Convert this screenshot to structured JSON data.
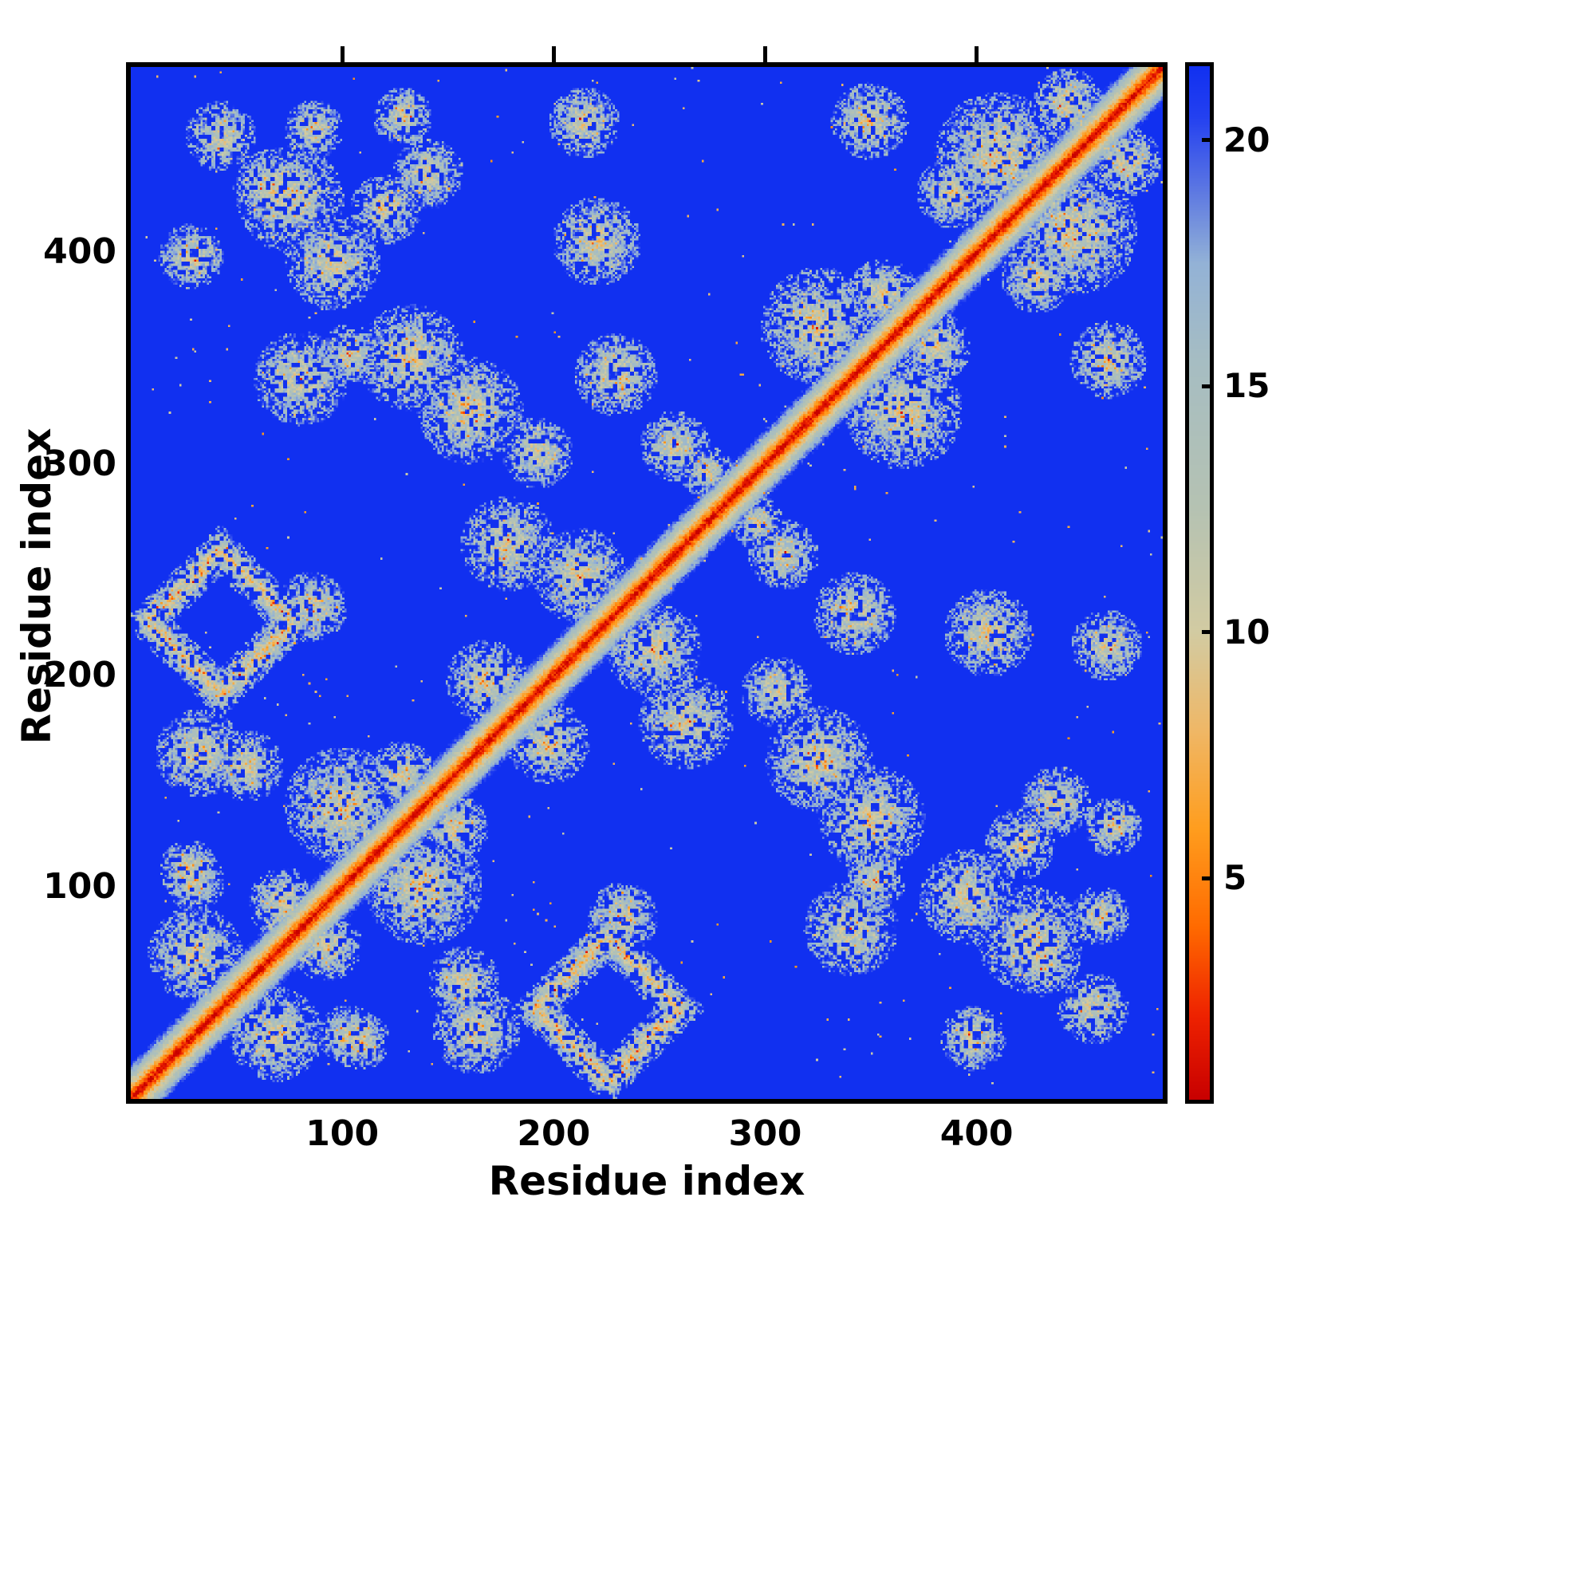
{
  "figure": {
    "description": "Protein residue pairwise distance / contact map with colorbar"
  },
  "chart_data": {
    "type": "heatmap",
    "title": "",
    "xlabel": "Residue index",
    "ylabel": "Residue index",
    "n_residues": 488,
    "x_ticks": [
      100,
      200,
      300,
      400
    ],
    "y_ticks": [
      100,
      200,
      300,
      400
    ],
    "colorbar_ticks": [
      5,
      10,
      15,
      20
    ],
    "value_range": [
      0.5,
      21.5
    ],
    "grid": false,
    "legend_position": "right-colorbar",
    "symmetric": true,
    "background_value": 21.5,
    "background_color": "#1130f0",
    "colormap_stops": [
      [
        0.5,
        "#c80000"
      ],
      [
        2.2,
        "#ee2200"
      ],
      [
        4.0,
        "#ff6a00"
      ],
      [
        6.0,
        "#ff9d1e"
      ],
      [
        8.0,
        "#efb766"
      ],
      [
        10.0,
        "#d2cba2"
      ],
      [
        12.5,
        "#b5c2b2"
      ],
      [
        15.5,
        "#a6bdc2"
      ],
      [
        17.5,
        "#93b2d6"
      ],
      [
        19.0,
        "#5c77e2"
      ],
      [
        20.5,
        "#2340f0"
      ],
      [
        21.5,
        "#1130f0"
      ]
    ],
    "diagonal_band": {
      "value_at_diagonal": 0.6,
      "slope_per_residue": 1.25,
      "half_width": 16
    },
    "contact_clusters": [
      {
        "i": 225,
        "j": 42,
        "r": 34,
        "w": 9,
        "shape": "ring"
      },
      {
        "i": 138,
        "j": 100,
        "r": 20,
        "shape": "blob"
      },
      {
        "i": 365,
        "j": 325,
        "r": 20,
        "shape": "blob"
      },
      {
        "i": 445,
        "j": 410,
        "r": 22,
        "shape": "blob"
      },
      {
        "i": 68,
        "j": 30,
        "r": 16,
        "shape": "blob"
      },
      {
        "i": 325,
        "j": 160,
        "r": 18,
        "shape": "blob"
      },
      {
        "i": 350,
        "j": 132,
        "r": 18,
        "shape": "blob"
      },
      {
        "i": 395,
        "j": 95,
        "r": 16,
        "shape": "blob"
      },
      {
        "i": 425,
        "j": 75,
        "r": 18,
        "shape": "blob"
      },
      {
        "i": 455,
        "j": 42,
        "r": 12,
        "shape": "blob"
      },
      {
        "i": 163,
        "j": 32,
        "r": 15,
        "shape": "blob"
      },
      {
        "i": 108,
        "j": 27,
        "r": 10,
        "shape": "blob"
      },
      {
        "i": 197,
        "j": 168,
        "r": 14,
        "shape": "blob"
      },
      {
        "i": 262,
        "j": 178,
        "r": 16,
        "shape": "blob"
      },
      {
        "i": 308,
        "j": 257,
        "r": 12,
        "shape": "blob"
      },
      {
        "i": 342,
        "j": 229,
        "r": 14,
        "shape": "blob"
      },
      {
        "i": 405,
        "j": 220,
        "r": 15,
        "shape": "blob"
      },
      {
        "i": 462,
        "j": 349,
        "r": 13,
        "shape": "blob"
      },
      {
        "i": 152,
        "j": 128,
        "r": 12,
        "shape": "blob"
      },
      {
        "i": 92,
        "j": 72,
        "r": 12,
        "shape": "blob"
      },
      {
        "i": 352,
        "j": 103,
        "r": 10,
        "shape": "blob"
      },
      {
        "i": 437,
        "j": 140,
        "r": 12,
        "shape": "blob"
      },
      {
        "i": 464,
        "j": 128,
        "r": 10,
        "shape": "blob"
      },
      {
        "i": 340,
        "j": 80,
        "r": 16,
        "shape": "blob"
      },
      {
        "i": 157,
        "j": 55,
        "r": 12,
        "shape": "blob"
      },
      {
        "i": 102,
        "j": 30,
        "r": 10,
        "shape": "blob"
      },
      {
        "i": 296,
        "j": 272,
        "r": 9,
        "shape": "blob"
      },
      {
        "i": 458,
        "j": 86,
        "r": 10,
        "shape": "blob"
      },
      {
        "i": 420,
        "j": 120,
        "r": 12,
        "shape": "blob"
      },
      {
        "i": 430,
        "j": 66,
        "r": 13,
        "shape": "blob"
      },
      {
        "i": 398,
        "j": 28,
        "r": 11,
        "shape": "blob"
      },
      {
        "i": 305,
        "j": 192,
        "r": 12,
        "shape": "blob"
      },
      {
        "i": 232,
        "j": 85,
        "r": 12,
        "shape": "blob"
      },
      {
        "i": 247,
        "j": 212,
        "r": 16,
        "shape": "blob"
      },
      {
        "i": 380,
        "j": 355,
        "r": 12,
        "shape": "blob"
      },
      {
        "i": 428,
        "j": 388,
        "r": 12,
        "shape": "blob"
      },
      {
        "i": 470,
        "j": 443,
        "r": 12,
        "shape": "blob"
      },
      {
        "i": 461,
        "j": 214,
        "r": 12,
        "shape": "blob"
      }
    ]
  }
}
